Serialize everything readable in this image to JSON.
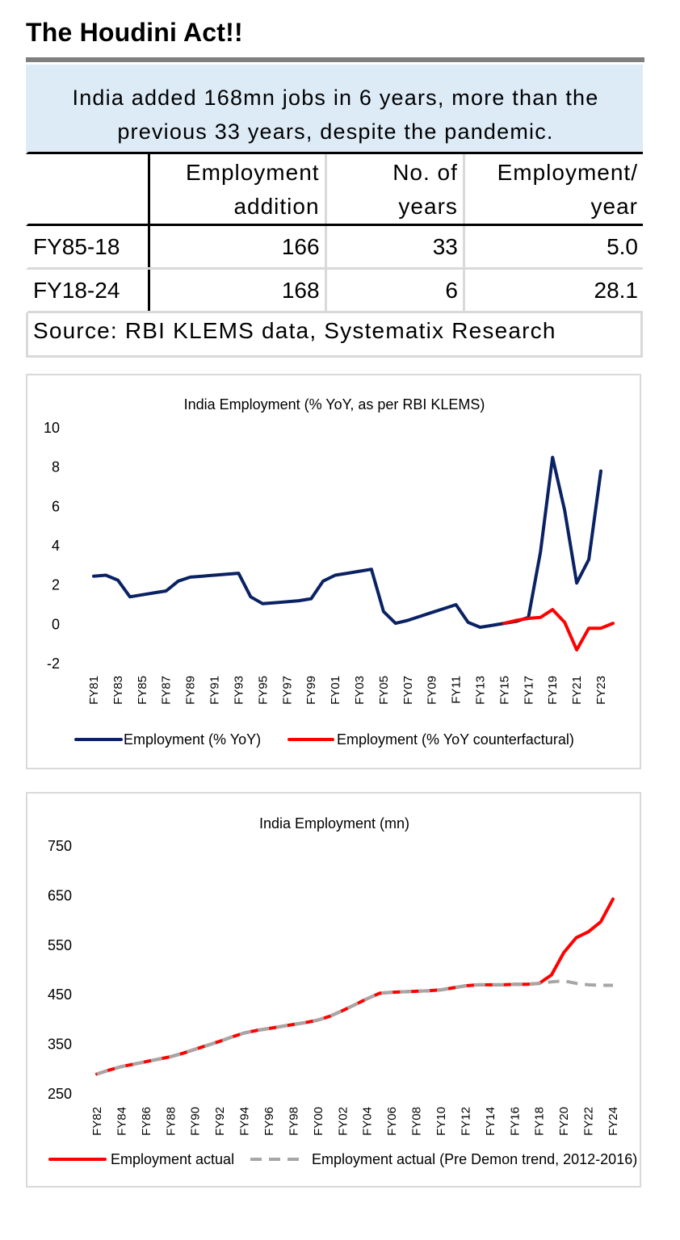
{
  "page": {
    "title": "The Houdini Act!!"
  },
  "table": {
    "headline_line1": "India added 168mn jobs in 6 years, more than the",
    "headline_line2": "previous 33 years, despite the pandemic.",
    "headers": {
      "col1_line1": "Employment",
      "col1_line2": "addition",
      "col2_line1": "No. of",
      "col2_line2": "years",
      "col3_line1": "Employment/",
      "col3_line2": "year"
    },
    "rows": [
      {
        "period": "FY85-18",
        "addition": "166",
        "years": "33",
        "per_year": "5.0"
      },
      {
        "period": "FY18-24",
        "addition": "168",
        "years": "6",
        "per_year": "28.1"
      }
    ],
    "source": "Source: RBI KLEMS data, Systematix Research"
  },
  "chart_data": [
    {
      "type": "line",
      "title": "India Employment (% YoY, as per RBI KLEMS)",
      "ylim": [
        -2,
        10
      ],
      "yticks": [
        "10",
        "8",
        "6",
        "4",
        "2",
        "0",
        "-2"
      ],
      "ytick_values": [
        10,
        8,
        6,
        4,
        2,
        0,
        -2
      ],
      "grid": false,
      "legend": "bottom",
      "x": [
        "FY81",
        "FY82",
        "FY83",
        "FY84",
        "FY85",
        "FY86",
        "FY87",
        "FY88",
        "FY89",
        "FY90",
        "FY91",
        "FY92",
        "FY93",
        "FY94",
        "FY95",
        "FY96",
        "FY97",
        "FY98",
        "FY99",
        "FY00",
        "FY01",
        "FY02",
        "FY03",
        "FY04",
        "FY05",
        "FY06",
        "FY07",
        "FY08",
        "FY09",
        "FY10",
        "FY11",
        "FY12",
        "FY13",
        "FY14",
        "FY15",
        "FY16",
        "FY17",
        "FY18",
        "FY19",
        "FY20",
        "FY21",
        "FY22",
        "FY23",
        "FY24"
      ],
      "xtick_labels": [
        "FY81",
        "FY83",
        "FY85",
        "FY87",
        "FY89",
        "FY91",
        "FY93",
        "FY95",
        "FY97",
        "FY99",
        "FY01",
        "FY03",
        "FY05",
        "FY07",
        "FY09",
        "FY11",
        "FY13",
        "FY15",
        "FY17",
        "FY19",
        "FY21",
        "FY23"
      ],
      "series": [
        {
          "name": "Employment (% YoY)",
          "color": "#0a2263",
          "values": [
            2.45,
            2.5,
            2.25,
            1.4,
            1.5,
            1.6,
            1.7,
            2.2,
            2.4,
            2.45,
            2.5,
            2.55,
            2.6,
            1.4,
            1.05,
            1.1,
            1.15,
            1.2,
            1.3,
            2.2,
            2.5,
            2.6,
            2.7,
            2.8,
            0.65,
            0.05,
            0.2,
            0.4,
            0.6,
            0.8,
            1.0,
            0.1,
            -0.15,
            -0.05,
            0.05,
            0.15,
            0.35,
            3.7,
            8.5,
            5.8,
            2.1,
            3.3,
            7.8,
            null
          ]
        },
        {
          "name": "Employment (% YoY counterfactural)",
          "color": "#ff0000",
          "values": [
            null,
            null,
            null,
            null,
            null,
            null,
            null,
            null,
            null,
            null,
            null,
            null,
            null,
            null,
            null,
            null,
            null,
            null,
            null,
            null,
            null,
            null,
            null,
            null,
            null,
            null,
            null,
            null,
            null,
            null,
            null,
            null,
            null,
            null,
            0.05,
            0.2,
            0.3,
            0.35,
            0.75,
            0.1,
            -1.3,
            -0.2,
            -0.2,
            0.05
          ]
        }
      ]
    },
    {
      "type": "line",
      "title": "India Employment (mn)",
      "ylim": [
        250,
        750
      ],
      "yticks": [
        "750",
        "650",
        "550",
        "450",
        "350",
        "250"
      ],
      "ytick_values": [
        750,
        650,
        550,
        450,
        350,
        250
      ],
      "grid": false,
      "legend": "bottom",
      "x": [
        "FY82",
        "FY83",
        "FY84",
        "FY85",
        "FY86",
        "FY87",
        "FY88",
        "FY89",
        "FY90",
        "FY91",
        "FY92",
        "FY93",
        "FY94",
        "FY95",
        "FY96",
        "FY97",
        "FY98",
        "FY99",
        "FY00",
        "FY01",
        "FY02",
        "FY03",
        "FY04",
        "FY05",
        "FY06",
        "FY07",
        "FY08",
        "FY09",
        "FY10",
        "FY11",
        "FY12",
        "FY13",
        "FY14",
        "FY15",
        "FY16",
        "FY17",
        "FY18",
        "FY19",
        "FY20",
        "FY21",
        "FY22",
        "FY23",
        "FY24"
      ],
      "xtick_labels": [
        "FY82",
        "FY84",
        "FY86",
        "FY88",
        "FY90",
        "FY92",
        "FY94",
        "FY96",
        "FY98",
        "FY00",
        "FY02",
        "FY04",
        "FY06",
        "FY08",
        "FY10",
        "FY12",
        "FY14",
        "FY16",
        "FY18",
        "FY20",
        "FY22",
        "FY24"
      ],
      "series": [
        {
          "name": "Employment actual",
          "color": "#ff0000",
          "dashed": false,
          "values": [
            290,
            298,
            305,
            310,
            315,
            320,
            325,
            332,
            340,
            348,
            356,
            365,
            373,
            378,
            382,
            386,
            390,
            394,
            399,
            407,
            418,
            430,
            442,
            453,
            455,
            456,
            457,
            458,
            460,
            464,
            468,
            470,
            470,
            470,
            471,
            471,
            473,
            490,
            535,
            565,
            577,
            597,
            643
          ]
        },
        {
          "name": "Employment actual (Pre Demon trend, 2012-2016)",
          "color": "#a6a6a6",
          "dashed": true,
          "values": [
            290,
            298,
            305,
            310,
            315,
            320,
            325,
            332,
            340,
            348,
            356,
            365,
            373,
            378,
            382,
            386,
            390,
            394,
            399,
            407,
            418,
            430,
            442,
            453,
            455,
            456,
            457,
            458,
            460,
            464,
            468,
            470,
            470,
            470,
            471,
            471,
            473,
            476,
            478,
            473,
            470,
            469,
            469
          ]
        }
      ]
    }
  ]
}
